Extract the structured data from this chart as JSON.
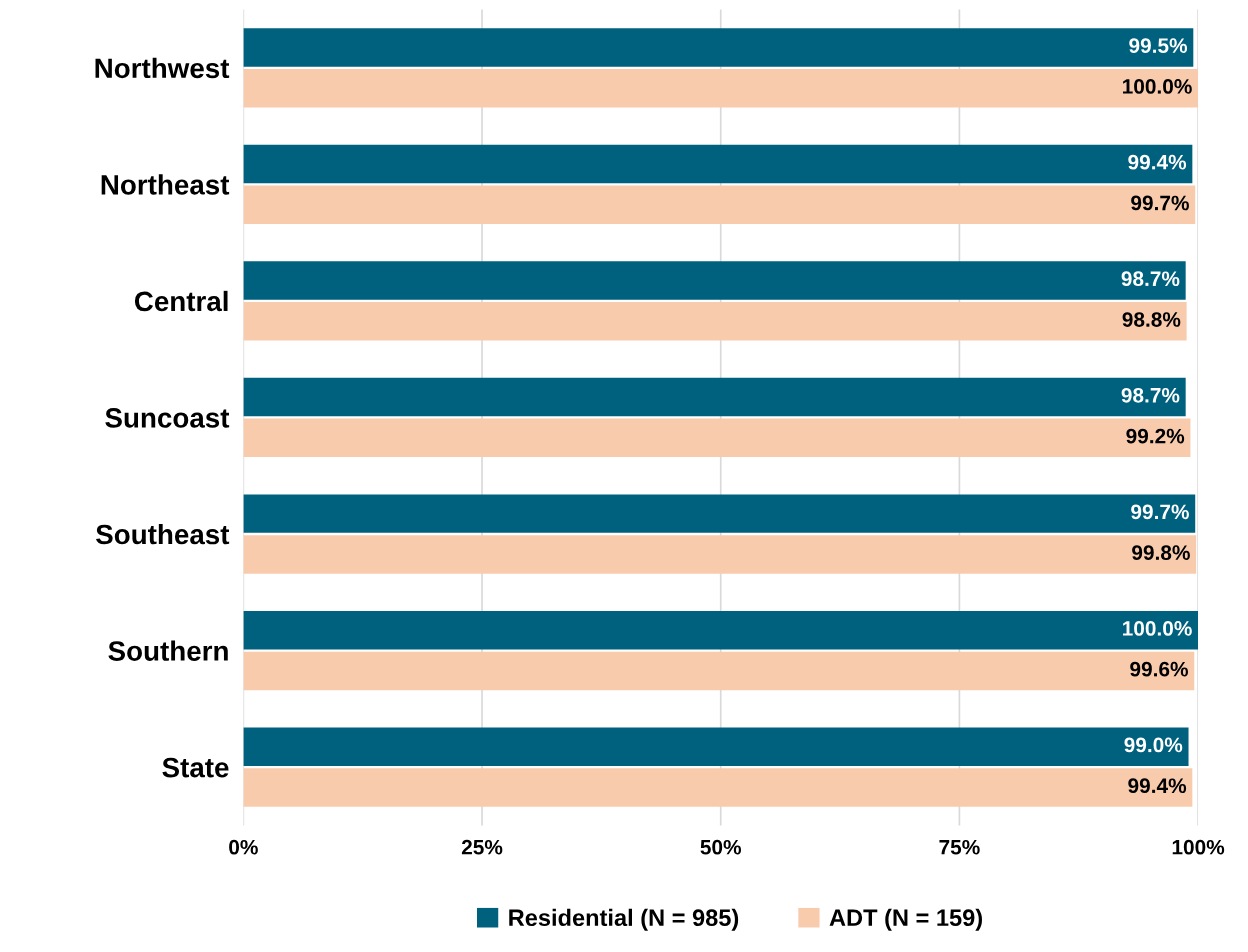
{
  "chart_data": {
    "type": "bar",
    "orientation": "horizontal",
    "categories": [
      "Northwest",
      "Northeast",
      "Central",
      "Suncoast",
      "Southeast",
      "Southern",
      "State"
    ],
    "series": [
      {
        "name": "Residential (N = 985)",
        "color": "#00617f",
        "values": [
          99.5,
          99.4,
          98.7,
          98.7,
          99.7,
          100.0,
          99.0
        ],
        "value_labels": [
          "99.5%",
          "99.4%",
          "98.7%",
          "98.7%",
          "99.7%",
          "100.0%",
          "99.0%"
        ]
      },
      {
        "name": "ADT (N = 159)",
        "color": "#f8cbad",
        "values": [
          100.0,
          99.7,
          98.8,
          99.2,
          99.8,
          99.6,
          99.4
        ],
        "value_labels": [
          "100.0%",
          "99.7%",
          "98.8%",
          "99.2%",
          "99.8%",
          "99.6%",
          "99.4%"
        ]
      }
    ],
    "xlim": [
      0,
      100
    ],
    "xticks": [
      {
        "value": 0,
        "label": "0%"
      },
      {
        "value": 25,
        "label": "25%"
      },
      {
        "value": 50,
        "label": "50%"
      },
      {
        "value": 75,
        "label": "75%"
      },
      {
        "value": 100,
        "label": "100%"
      }
    ],
    "grid": "x",
    "legend": "bottom"
  }
}
